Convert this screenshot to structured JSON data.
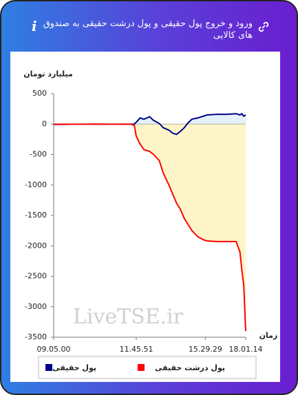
{
  "header": {
    "title": "ورود و خروج پول حقیقی و پول درشت حقیقی به صندوق های کالایی"
  },
  "chart_data": {
    "type": "line",
    "y_label": "میلیارد تومان",
    "x_label": "زمان",
    "watermark": "LiveTSE.ir",
    "x": [
      0,
      10,
      20,
      30,
      40,
      42,
      43,
      45,
      47,
      50,
      52,
      55,
      57,
      60,
      62,
      64,
      66,
      68,
      70,
      72,
      75,
      78,
      80,
      85,
      90,
      95,
      97,
      98,
      99,
      100
    ],
    "series": [
      {
        "name": "پول حقیقی",
        "color": "#00008b",
        "fill": "#e4f1f8",
        "values": [
          -5,
          -3,
          -2,
          -3,
          -2,
          0,
          30,
          100,
          80,
          120,
          60,
          10,
          -60,
          -100,
          -150,
          -170,
          -120,
          -60,
          20,
          80,
          100,
          130,
          150,
          160,
          160,
          170,
          150,
          170,
          130,
          150
        ]
      },
      {
        "name": "پول درشت حقیقی",
        "color": "#ff0000",
        "fill": "#fdf5c8",
        "values": [
          -5,
          -3,
          -2,
          -3,
          -2,
          -20,
          -200,
          -330,
          -420,
          -450,
          -500,
          -600,
          -800,
          -1000,
          -1150,
          -1300,
          -1400,
          -1550,
          -1650,
          -1750,
          -1850,
          -1900,
          -1920,
          -1930,
          -1930,
          -1930,
          -2100,
          -2400,
          -2650,
          -3400
        ]
      }
    ],
    "xlim": [
      0,
      100
    ],
    "xticks": [
      {
        "value": 0,
        "label": "09.05.00"
      },
      {
        "value": 43,
        "label": "11.45.51"
      },
      {
        "value": 79,
        "label": "15.29.29"
      },
      {
        "value": 100,
        "label": "18.01.14"
      }
    ],
    "ylim": [
      -3500,
      500
    ],
    "yticks": [
      500,
      0,
      -500,
      -1000,
      -1500,
      -2000,
      -2500,
      -3000,
      -3500
    ],
    "grid": false
  }
}
